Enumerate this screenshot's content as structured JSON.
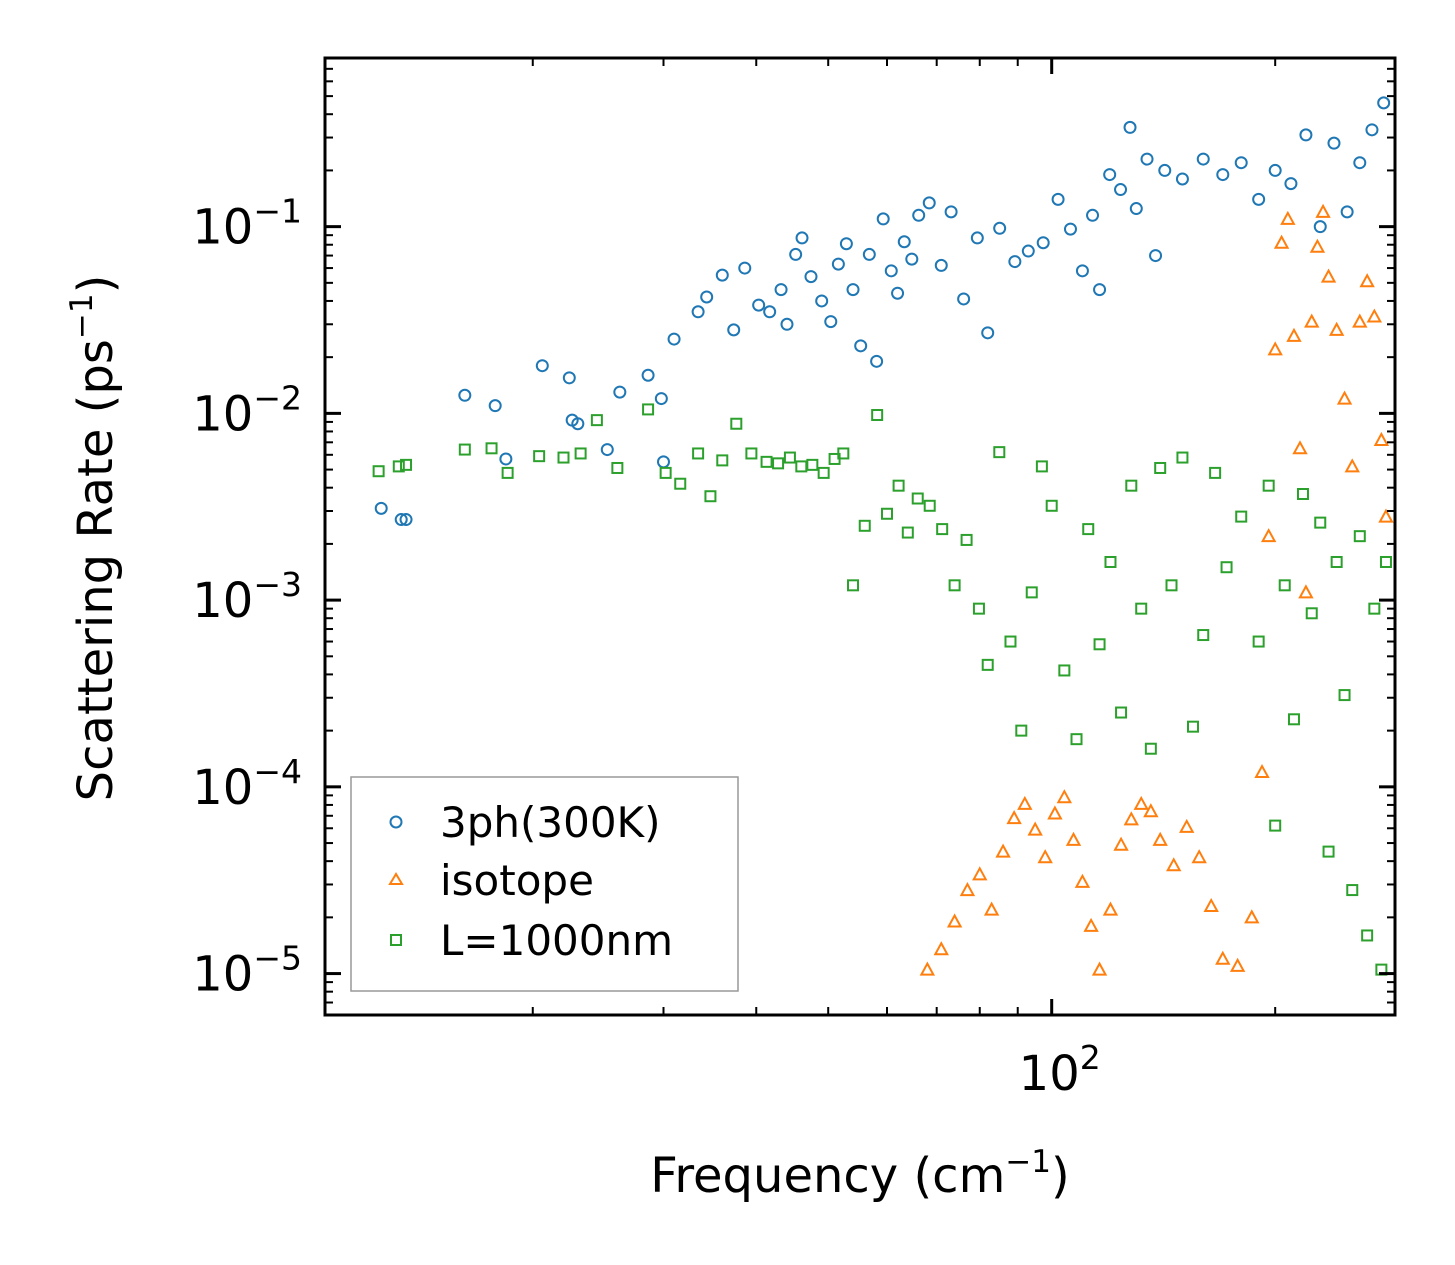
{
  "chart_data": {
    "type": "scatter",
    "xscale": "log",
    "yscale": "log",
    "xlabel": {
      "base": "Frequency (cm",
      "sup": "−1",
      "tail": ")"
    },
    "ylabel": {
      "base": "Scattering Rate (ps",
      "sup": "−1",
      "tail": ")"
    },
    "xlim": [
      10.5,
      290
    ],
    "ylim": [
      6e-06,
      0.8
    ],
    "x_major_ticks": [
      {
        "value": 100,
        "base": "10",
        "exp": "2"
      }
    ],
    "y_major_ticks": [
      {
        "value": 0.1,
        "base": "10",
        "exp": "−1"
      },
      {
        "value": 0.01,
        "base": "10",
        "exp": "−2"
      },
      {
        "value": 0.001,
        "base": "10",
        "exp": "−3"
      },
      {
        "value": 0.0001,
        "base": "10",
        "exp": "−4"
      },
      {
        "value": 1e-05,
        "base": "10",
        "exp": "−5"
      }
    ],
    "legend_position": "lower-left",
    "series": [
      {
        "name": "3ph(300K)",
        "marker": "circle",
        "color": "#1f77b4",
        "points": [
          [
            12.5,
            0.0031
          ],
          [
            13.3,
            0.0027
          ],
          [
            13.5,
            0.0027
          ],
          [
            16.2,
            0.0125
          ],
          [
            17.8,
            0.011
          ],
          [
            18.4,
            0.0057
          ],
          [
            20.6,
            0.018
          ],
          [
            22.4,
            0.0155
          ],
          [
            22.6,
            0.0092
          ],
          [
            23.0,
            0.0088
          ],
          [
            25.2,
            0.0064
          ],
          [
            26.2,
            0.013
          ],
          [
            28.6,
            0.016
          ],
          [
            29.8,
            0.012
          ],
          [
            30.0,
            0.0055
          ],
          [
            31.0,
            0.025
          ],
          [
            33.4,
            0.035
          ],
          [
            34.3,
            0.042
          ],
          [
            36.0,
            0.055
          ],
          [
            37.3,
            0.028
          ],
          [
            38.6,
            0.06
          ],
          [
            40.3,
            0.038
          ],
          [
            41.7,
            0.035
          ],
          [
            43.2,
            0.046
          ],
          [
            44.0,
            0.03
          ],
          [
            45.2,
            0.071
          ],
          [
            46.1,
            0.087
          ],
          [
            47.4,
            0.054
          ],
          [
            49.0,
            0.04
          ],
          [
            50.4,
            0.031
          ],
          [
            51.6,
            0.063
          ],
          [
            52.9,
            0.081
          ],
          [
            54.0,
            0.046
          ],
          [
            55.3,
            0.023
          ],
          [
            56.8,
            0.071
          ],
          [
            58.1,
            0.019
          ],
          [
            59.3,
            0.11
          ],
          [
            60.8,
            0.058
          ],
          [
            62.0,
            0.044
          ],
          [
            63.3,
            0.083
          ],
          [
            64.8,
            0.067
          ],
          [
            66.2,
            0.115
          ],
          [
            68.4,
            0.134
          ],
          [
            71.0,
            0.062
          ],
          [
            73.2,
            0.12
          ],
          [
            76.1,
            0.041
          ],
          [
            79.4,
            0.087
          ],
          [
            82.0,
            0.027
          ],
          [
            85.1,
            0.098
          ],
          [
            89.2,
            0.065
          ],
          [
            93.0,
            0.074
          ],
          [
            97.4,
            0.082
          ],
          [
            102.0,
            0.14
          ],
          [
            106.0,
            0.097
          ],
          [
            110.0,
            0.058
          ],
          [
            113.5,
            0.115
          ],
          [
            116.0,
            0.046
          ],
          [
            119.7,
            0.19
          ],
          [
            123.8,
            0.158
          ],
          [
            127.5,
            0.34
          ],
          [
            130.0,
            0.125
          ],
          [
            134.4,
            0.23
          ],
          [
            138.0,
            0.07
          ],
          [
            142.0,
            0.2
          ],
          [
            150.0,
            0.18
          ],
          [
            160.0,
            0.23
          ],
          [
            170.0,
            0.19
          ],
          [
            180.0,
            0.22
          ],
          [
            190.0,
            0.14
          ],
          [
            200.0,
            0.2
          ],
          [
            210.0,
            0.17
          ],
          [
            220.0,
            0.31
          ],
          [
            230.0,
            0.1
          ],
          [
            240.0,
            0.28
          ],
          [
            250.0,
            0.12
          ],
          [
            260.0,
            0.22
          ],
          [
            270.0,
            0.33
          ],
          [
            280.0,
            0.46
          ]
        ]
      },
      {
        "name": "isotope",
        "marker": "triangle",
        "color": "#ff7f0e",
        "points": [
          [
            68.0,
            1.05e-05
          ],
          [
            71.0,
            1.35e-05
          ],
          [
            74.0,
            1.9e-05
          ],
          [
            77.0,
            2.8e-05
          ],
          [
            80.0,
            3.4e-05
          ],
          [
            83.0,
            2.2e-05
          ],
          [
            86.0,
            4.5e-05
          ],
          [
            89.0,
            6.8e-05
          ],
          [
            92.0,
            8.1e-05
          ],
          [
            95.0,
            5.9e-05
          ],
          [
            98.0,
            4.2e-05
          ],
          [
            101.0,
            7.2e-05
          ],
          [
            104.0,
            8.8e-05
          ],
          [
            107.0,
            5.2e-05
          ],
          [
            110.0,
            3.1e-05
          ],
          [
            113.0,
            1.8e-05
          ],
          [
            116.0,
            1.05e-05
          ],
          [
            120.0,
            2.2e-05
          ],
          [
            124.0,
            4.9e-05
          ],
          [
            128.0,
            6.7e-05
          ],
          [
            132.0,
            8.1e-05
          ],
          [
            136.0,
            7.4e-05
          ],
          [
            140.0,
            5.2e-05
          ],
          [
            146.0,
            3.8e-05
          ],
          [
            152.0,
            6.1e-05
          ],
          [
            158.0,
            4.2e-05
          ],
          [
            164.0,
            2.3e-05
          ],
          [
            170.0,
            1.2e-05
          ],
          [
            178.0,
            1.1e-05
          ],
          [
            186.0,
            2e-05
          ],
          [
            192.0,
            0.00012
          ],
          [
            196.0,
            0.0022
          ],
          [
            200.0,
            0.022
          ],
          [
            204.0,
            0.082
          ],
          [
            208.0,
            0.11
          ],
          [
            212.0,
            0.026
          ],
          [
            216.0,
            0.0065
          ],
          [
            220.0,
            0.0011
          ],
          [
            224.0,
            0.031
          ],
          [
            228.0,
            0.078
          ],
          [
            232.0,
            0.12
          ],
          [
            236.0,
            0.054
          ],
          [
            242.0,
            0.028
          ],
          [
            248.0,
            0.012
          ],
          [
            254.0,
            0.0052
          ],
          [
            260.0,
            0.031
          ],
          [
            266.0,
            0.051
          ],
          [
            272.0,
            0.033
          ],
          [
            278.0,
            0.0072
          ],
          [
            282.0,
            0.0028
          ]
        ]
      },
      {
        "name": "L=1000nm",
        "marker": "square",
        "color": "#2ca02c",
        "points": [
          [
            12.4,
            0.0049
          ],
          [
            13.2,
            0.0052
          ],
          [
            13.5,
            0.0053
          ],
          [
            16.2,
            0.0064
          ],
          [
            17.6,
            0.0065
          ],
          [
            18.5,
            0.0048
          ],
          [
            20.4,
            0.0059
          ],
          [
            22.0,
            0.0058
          ],
          [
            23.2,
            0.0061
          ],
          [
            24.4,
            0.0092
          ],
          [
            26.0,
            0.0051
          ],
          [
            28.6,
            0.0105
          ],
          [
            30.2,
            0.0048
          ],
          [
            31.6,
            0.0042
          ],
          [
            33.4,
            0.0061
          ],
          [
            34.7,
            0.0036
          ],
          [
            36.0,
            0.0056
          ],
          [
            37.6,
            0.0088
          ],
          [
            39.4,
            0.0061
          ],
          [
            41.3,
            0.0055
          ],
          [
            42.8,
            0.0054
          ],
          [
            44.4,
            0.0058
          ],
          [
            46.0,
            0.0052
          ],
          [
            47.6,
            0.0053
          ],
          [
            49.3,
            0.0048
          ],
          [
            51.0,
            0.0057
          ],
          [
            52.4,
            0.0061
          ],
          [
            54.0,
            0.0012
          ],
          [
            56.0,
            0.0025
          ],
          [
            58.2,
            0.0098
          ],
          [
            60.0,
            0.0029
          ],
          [
            62.2,
            0.0041
          ],
          [
            64.0,
            0.0023
          ],
          [
            66.0,
            0.0035
          ],
          [
            68.5,
            0.0032
          ],
          [
            71.2,
            0.0024
          ],
          [
            74.0,
            0.0012
          ],
          [
            76.8,
            0.0021
          ],
          [
            79.8,
            0.0009
          ],
          [
            82.0,
            0.00045
          ],
          [
            85.0,
            0.0062
          ],
          [
            88.0,
            0.0006
          ],
          [
            91.0,
            0.0002
          ],
          [
            94.0,
            0.0011
          ],
          [
            97.0,
            0.0052
          ],
          [
            100.0,
            0.0032
          ],
          [
            104.0,
            0.00042
          ],
          [
            108.0,
            0.00018
          ],
          [
            112.0,
            0.0024
          ],
          [
            116.0,
            0.00058
          ],
          [
            120.0,
            0.0016
          ],
          [
            124.0,
            0.00025
          ],
          [
            128.0,
            0.0041
          ],
          [
            132.0,
            0.0009
          ],
          [
            136.0,
            0.00016
          ],
          [
            140.0,
            0.0051
          ],
          [
            145.0,
            0.0012
          ],
          [
            150.0,
            0.0058
          ],
          [
            155.0,
            0.00021
          ],
          [
            160.0,
            0.00065
          ],
          [
            166.0,
            0.0048
          ],
          [
            172.0,
            0.0015
          ],
          [
            180.0,
            0.0028
          ],
          [
            190.0,
            0.0006
          ],
          [
            196.0,
            0.0041
          ],
          [
            200.0,
            6.2e-05
          ],
          [
            206.0,
            0.0012
          ],
          [
            212.0,
            0.00023
          ],
          [
            218.0,
            0.0037
          ],
          [
            224.0,
            0.00085
          ],
          [
            230.0,
            0.0026
          ],
          [
            236.0,
            4.5e-05
          ],
          [
            242.0,
            0.0016
          ],
          [
            248.0,
            0.00031
          ],
          [
            254.0,
            2.8e-05
          ],
          [
            260.0,
            0.0022
          ],
          [
            266.0,
            1.6e-05
          ],
          [
            272.0,
            0.0009
          ],
          [
            278.0,
            1.05e-05
          ],
          [
            282.0,
            0.0016
          ]
        ]
      }
    ]
  }
}
